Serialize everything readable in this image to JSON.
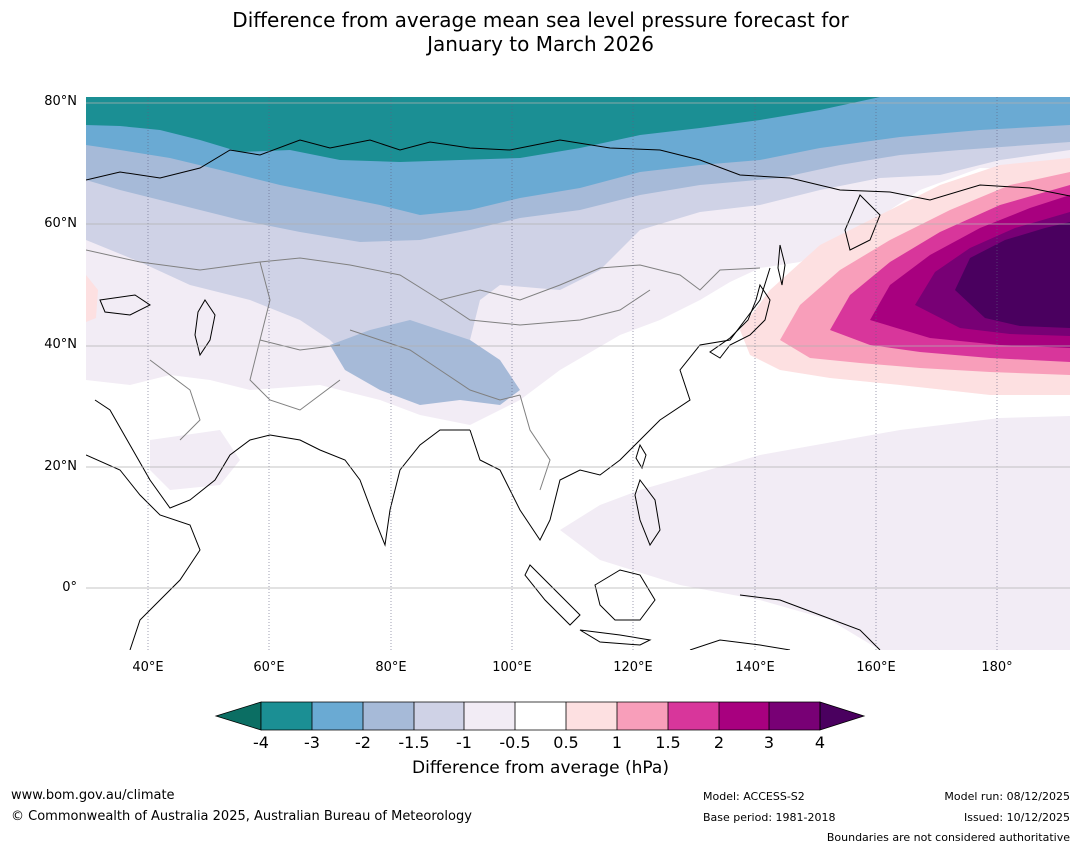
{
  "title": {
    "line1": "Difference from average mean sea level pressure forecast for",
    "line2": "January to March 2026"
  },
  "map": {
    "lat_labels": [
      "80°N",
      "60°N",
      "40°N",
      "20°N",
      "0°"
    ],
    "lon_labels": [
      "40°E",
      "60°E",
      "80°E",
      "100°E",
      "120°E",
      "140°E",
      "160°E",
      "180°"
    ]
  },
  "colorbar": {
    "labels": [
      "-4",
      "-3",
      "-2",
      "-1.5",
      "-1",
      "-0.5",
      "0.5",
      "1",
      "1.5",
      "2",
      "3",
      "4"
    ],
    "colors": [
      "#0b6e63",
      "#1b8f94",
      "#6aaad3",
      "#a6bad8",
      "#cfd2e6",
      "#f2ecf5",
      "#ffffff",
      "#fde0e1",
      "#f89eba",
      "#d8369b",
      "#a8007f",
      "#780075",
      "#4a005f"
    ],
    "title": "Difference from average (hPa)"
  },
  "footer": {
    "website": "www.bom.gov.au/climate",
    "copyright": "© Commonwealth of Australia 2025, Australian Bureau of Meteorology",
    "model": "Model: ACCESS-S2",
    "base_period": "Base period: 1981-2018",
    "model_run": "Model run: 08/12/2025",
    "issued": "Issued: 10/12/2025",
    "disclaimer": "Boundaries are not considered authoritative"
  }
}
